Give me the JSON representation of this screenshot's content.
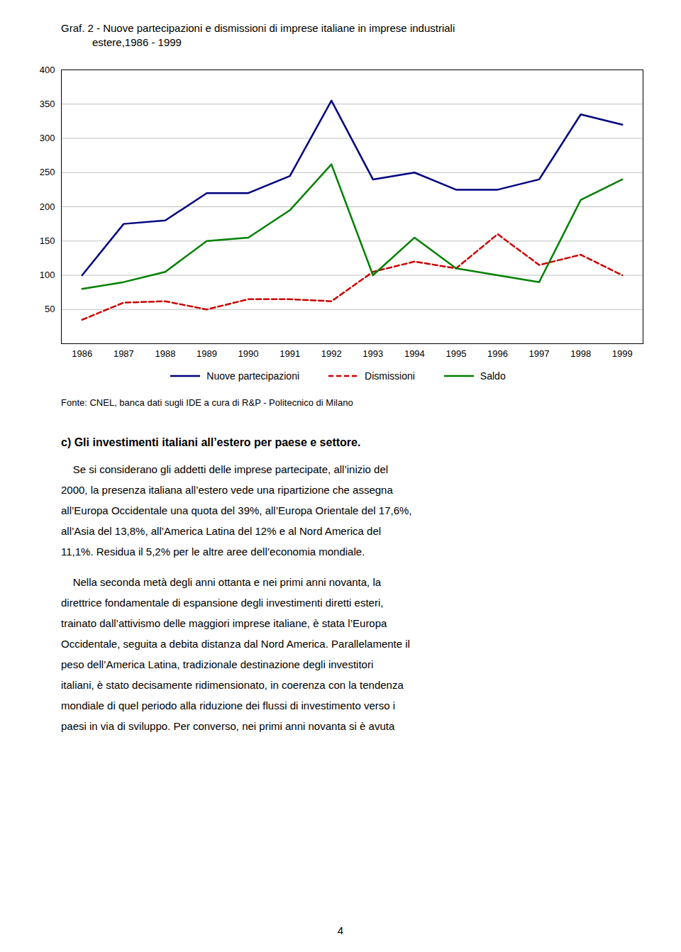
{
  "chart_data": {
    "type": "line",
    "title": "Graf. 2 - Nuove partecipazioni e dismissioni di imprese italiane in imprese industriali",
    "subtitle": "estere,1986 - 1999",
    "x": [
      1986,
      1987,
      1988,
      1989,
      1990,
      1991,
      1992,
      1993,
      1994,
      1995,
      1996,
      1997,
      1998,
      1999
    ],
    "series": [
      {
        "name": "Nuove partecipazioni",
        "color": "#000080",
        "line_style": "solid",
        "values": [
          100,
          175,
          180,
          220,
          220,
          245,
          355,
          240,
          250,
          225,
          225,
          240,
          335,
          320
        ]
      },
      {
        "name": "Dismissioni",
        "color": "#cc0000",
        "line_style": "dashed",
        "values": [
          35,
          60,
          62,
          50,
          65,
          65,
          62,
          105,
          120,
          110,
          160,
          115,
          130,
          100
        ]
      },
      {
        "name": "Saldo",
        "color": "#008000",
        "line_style": "solid",
        "values": [
          80,
          90,
          105,
          150,
          155,
          195,
          262,
          100,
          155,
          110,
          100,
          90,
          210,
          240
        ]
      }
    ],
    "xlim": [
      1985.5,
      1999.5
    ],
    "xticks": [
      1986,
      1987,
      1988,
      1989,
      1990,
      1991,
      1992,
      1993,
      1994,
      1995,
      1996,
      1997,
      1998,
      1999
    ],
    "ylim": [
      0,
      400
    ],
    "yticks": [
      {
        "value": 0,
        "label": ""
      },
      50,
      100,
      150,
      200,
      250,
      300,
      350,
      400
    ],
    "grid": true,
    "legend": "lower center",
    "annotations": [
      "Fonte: CNEL, banca dati sugli IDE a cura di R&P - Politecnico di Milano",
      "c) Gli investimenti italiani all’estero per paese e settore.",
      "    Se si considerano gli addetti delle imprese partecipate, all’inizio del",
      "2000, la presenza italiana all’estero vede una ripartizione che assegna",
      "all’Europa Occidentale una quota del 39%, all’Europa Orientale del 17,6%,",
      "all’Asia del 13,8%, all’America Latina del 12% e al Nord America del",
      "11,1%. Residua il 5,2% per le altre aree dell’economia mondiale.",
      "    Nella seconda metà degli anni ottanta e nei primi anni novanta, la",
      "direttrice fondamentale di espansione degli investimenti diretti esteri,",
      "trainato dall’attivismo delle maggiori imprese italiane, è stata l’Europa",
      "Occidentale, seguita a debita distanza dal Nord America. Parallelamente il",
      "peso dell’America Latina, tradizionale destinazione degli investitori",
      "italiani, è stato decisamente ridimensionato, in coerenza con la tendenza",
      "mondiale di quel periodo alla riduzione dei flussi di investimento verso i",
      "paesi in via di sviluppo. Per converso, nei primi anni novanta si è avuta",
      "4"
    ]
  }
}
